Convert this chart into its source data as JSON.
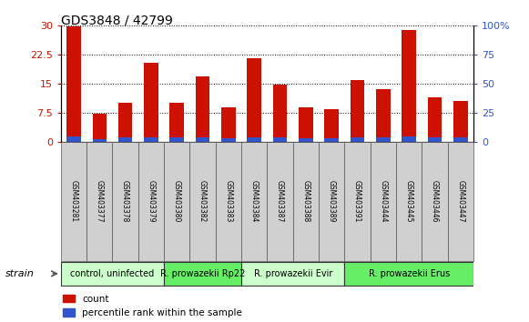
{
  "title": "GDS3848 / 42799",
  "samples": [
    "GSM403281",
    "GSM403377",
    "GSM403378",
    "GSM403379",
    "GSM403380",
    "GSM403382",
    "GSM403383",
    "GSM403384",
    "GSM403387",
    "GSM403388",
    "GSM403389",
    "GSM403391",
    "GSM403444",
    "GSM403445",
    "GSM403446",
    "GSM403447"
  ],
  "count_values": [
    29.8,
    7.3,
    10.0,
    20.5,
    10.0,
    17.0,
    9.0,
    21.5,
    14.7,
    9.0,
    8.5,
    16.0,
    13.5,
    29.0,
    11.5,
    10.5
  ],
  "percentile_values": [
    4.5,
    2.0,
    3.5,
    4.0,
    3.5,
    3.5,
    3.0,
    4.0,
    4.0,
    3.0,
    3.0,
    4.0,
    3.5,
    4.5,
    3.5,
    3.5
  ],
  "count_color": "#cc1100",
  "percentile_color": "#3355cc",
  "groups": [
    {
      "label": "control, uninfected",
      "start": 0,
      "end": 4,
      "color": "#ccffcc"
    },
    {
      "label": "R. prowazekii Rp22",
      "start": 4,
      "end": 7,
      "color": "#66ee66"
    },
    {
      "label": "R. prowazekii Evir",
      "start": 7,
      "end": 11,
      "color": "#ccffcc"
    },
    {
      "label": "R. prowazekii Erus",
      "start": 11,
      "end": 16,
      "color": "#66ee66"
    }
  ],
  "ylim_left": [
    0,
    30
  ],
  "ylim_right": [
    0,
    100
  ],
  "yticks_left": [
    0,
    7.5,
    15,
    22.5,
    30
  ],
  "ytick_labels_left": [
    "0",
    "7.5",
    "15",
    "22.5",
    "30"
  ],
  "yticks_right": [
    0,
    25,
    50,
    75,
    100
  ],
  "ytick_labels_right": [
    "0",
    "25",
    "50",
    "75",
    "100%"
  ],
  "bar_width": 0.55,
  "background_color": "#ffffff",
  "strain_label": "strain",
  "legend_count": "count",
  "legend_percentile": "percentile rank within the sample",
  "title_fontsize": 10
}
